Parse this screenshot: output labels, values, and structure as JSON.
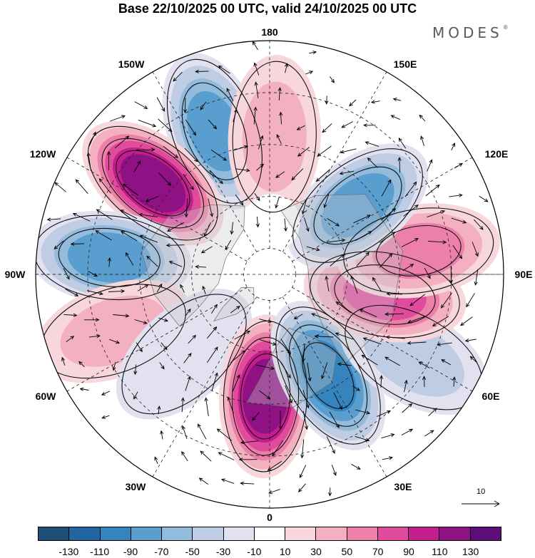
{
  "title": "Base 22/10/2025 00 UTC, valid 24/10/2025 00 UTC",
  "brand": {
    "name": "MODES",
    "mark": "®"
  },
  "lon_labels": {
    "l180": "180",
    "l150e": "150E",
    "l120e": "120E",
    "l90e": "90E",
    "l60e": "60E",
    "l30e": "30E",
    "l0": "0",
    "l30w": "30W",
    "l60w": "60W",
    "l90w": "90W",
    "l120w": "120W",
    "l150w": "150W"
  },
  "vector_reference": {
    "label": "10"
  },
  "colorbar": {
    "colors": [
      "#1f4e79",
      "#2266a1",
      "#3584be",
      "#5a9ecf",
      "#93bbdc",
      "#bfcde4",
      "#e2e1ef",
      "#ffffff",
      "#f7d6dc",
      "#f3b0c0",
      "#ec80a8",
      "#e04b9b",
      "#c31e8e",
      "#8e1283",
      "#5c0f78"
    ],
    "tick_labels": [
      "-130",
      "-110",
      "-90",
      "-70",
      "-50",
      "-30",
      "-10",
      "10",
      "30",
      "50",
      "70",
      "90",
      "110",
      "130"
    ]
  },
  "anomaly_cells": [
    {
      "name": "cell-150w-negative",
      "lon": -159,
      "lat": 31,
      "value": -85
    },
    {
      "name": "cell-120w-positive",
      "lon": -128,
      "lat": 33,
      "value": 118
    },
    {
      "name": "cell-90w-negative",
      "lon": -96,
      "lat": 28,
      "value": -70
    },
    {
      "name": "cell-70w-positive",
      "lon": -70,
      "lat": 26,
      "value": 35
    },
    {
      "name": "cell-45w-negative",
      "lon": -47,
      "lat": 45,
      "value": -25
    },
    {
      "name": "cell-0-positive",
      "lon": -2,
      "lat": 43,
      "value": 115
    },
    {
      "name": "cell-30e-negative",
      "lon": 30,
      "lat": 45,
      "value": -90
    },
    {
      "name": "cell-55e-negative",
      "lon": 60,
      "lat": 26,
      "value": -30
    },
    {
      "name": "cell-80e-positive",
      "lon": 80,
      "lat": 45,
      "value": 75
    },
    {
      "name": "cell-95e-positive",
      "lon": 99,
      "lat": 32,
      "value": 55
    },
    {
      "name": "cell-125e-negative",
      "lon": 128,
      "lat": 47,
      "value": -80
    },
    {
      "name": "cell-180-positive",
      "lon": 178,
      "lat": 37,
      "value": 40
    },
    {
      "name": "cell-pole-cap",
      "lon": 178,
      "lat": 70,
      "value": 0
    }
  ]
}
